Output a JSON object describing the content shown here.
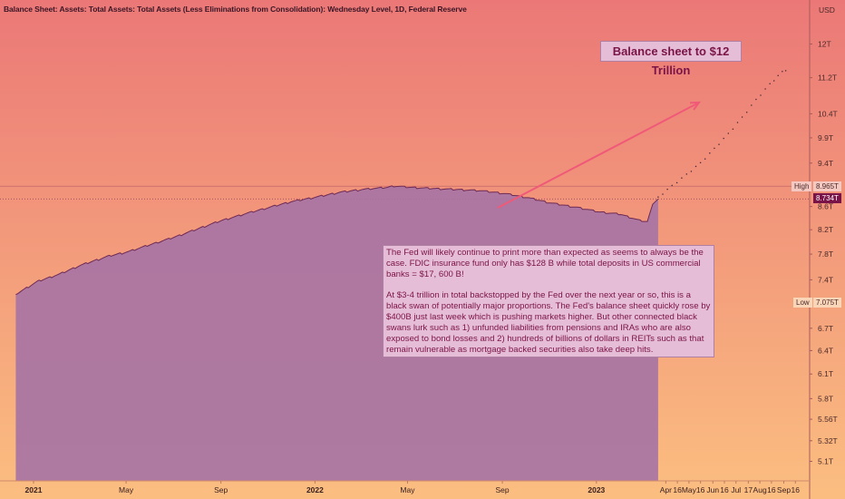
{
  "header": {
    "title": "Balance Sheet: Assets: Total Assets: Total Assets (Less Eliminations from Consolidation): Wednesday Level, 1D, Federal Reserve"
  },
  "colors": {
    "bg_top": "#eb7877",
    "bg_bottom": "#fbbe80",
    "area_fill": "#a774a4",
    "area_line": "#6e2a54",
    "arrow": "#f05a78",
    "note_bg": "#e6bdd6",
    "note_text": "#7a1448"
  },
  "annotations": {
    "title_note": "Balance sheet to $12 Trillion",
    "note_p1": "The Fed will likely continue to print more than expected as seems to always be the case. FDIC insurance fund only has $128 B while total deposits in US commercial banks = $17, 600 B!",
    "note_p2": "At $3-4 trillion in total backstopped by the Fed over the next year or so, this is a black swan of potentially major proportions. The Fed's balance sheet quickly rose by $400B just last week which is pushing markets higher. But other connected black swans lurk such as 1) unfunded liabilities from pensions and IRAs who are also exposed to bond losses and 2) hundreds of billions of dollars in REITs such as  that remain vulnerable as mortgage backed securities also take deep hits."
  },
  "price_tags": {
    "high_label": "High",
    "high_value": "8.965T",
    "current_value": "8.734T",
    "low_label": "Low",
    "low_value": "7.075T"
  },
  "chart_data": {
    "type": "area",
    "ylabel": "USD",
    "y_scale": "log",
    "y_ticks": [
      {
        "value": 12.0,
        "label": "12T"
      },
      {
        "value": 11.2,
        "label": "11.2T"
      },
      {
        "value": 10.4,
        "label": "10.4T"
      },
      {
        "value": 9.9,
        "label": "9.9T"
      },
      {
        "value": 9.4,
        "label": "9.4T"
      },
      {
        "value": 8.6,
        "label": "8.6T"
      },
      {
        "value": 8.2,
        "label": "8.2T"
      },
      {
        "value": 7.8,
        "label": "7.8T"
      },
      {
        "value": 7.4,
        "label": "7.4T"
      },
      {
        "value": 6.7,
        "label": "6.7T"
      },
      {
        "value": 6.4,
        "label": "6.4T"
      },
      {
        "value": 6.1,
        "label": "6.1T"
      },
      {
        "value": 5.8,
        "label": "5.8T"
      },
      {
        "value": 5.56,
        "label": "5.56T"
      },
      {
        "value": 5.32,
        "label": "5.32T"
      },
      {
        "value": 5.1,
        "label": "5.1T"
      }
    ],
    "x_ticks": [
      {
        "date": "2021-01-01",
        "label": "2021",
        "bold": true
      },
      {
        "date": "2021-05-01",
        "label": "May",
        "bold": false
      },
      {
        "date": "2021-09-01",
        "label": "Sep",
        "bold": false
      },
      {
        "date": "2022-01-01",
        "label": "2022",
        "bold": true
      },
      {
        "date": "2022-05-01",
        "label": "May",
        "bold": false
      },
      {
        "date": "2022-09-01",
        "label": "Sep",
        "bold": false
      },
      {
        "date": "2023-01-01",
        "label": "2023",
        "bold": true
      },
      {
        "date": "2023-04-01",
        "label": "Apr",
        "bold": false
      },
      {
        "date": "2023-04-16",
        "label": "16",
        "bold": false
      },
      {
        "date": "2023-05-01",
        "label": "May",
        "bold": false
      },
      {
        "date": "2023-05-16",
        "label": "16",
        "bold": false
      },
      {
        "date": "2023-06-01",
        "label": "Jun",
        "bold": false
      },
      {
        "date": "2023-06-16",
        "label": "16",
        "bold": false
      },
      {
        "date": "2023-07-01",
        "label": "Jul",
        "bold": false
      },
      {
        "date": "2023-07-17",
        "label": "17",
        "bold": false
      },
      {
        "date": "2023-08-01",
        "label": "Aug",
        "bold": false
      },
      {
        "date": "2023-08-16",
        "label": "16",
        "bold": false
      },
      {
        "date": "2023-09-01",
        "label": "Sep",
        "bold": false
      },
      {
        "date": "2023-09-16",
        "label": "16",
        "bold": false
      }
    ],
    "series": [
      {
        "values": [
          {
            "date": "2020-12-09",
            "value": 7.18
          },
          {
            "date": "2021-01-06",
            "value": 7.37
          },
          {
            "date": "2021-02-03",
            "value": 7.48
          },
          {
            "date": "2021-03-03",
            "value": 7.62
          },
          {
            "date": "2021-04-07",
            "value": 7.76
          },
          {
            "date": "2021-05-05",
            "value": 7.84
          },
          {
            "date": "2021-06-02",
            "value": 7.95
          },
          {
            "date": "2021-07-07",
            "value": 8.09
          },
          {
            "date": "2021-08-04",
            "value": 8.22
          },
          {
            "date": "2021-09-01",
            "value": 8.35
          },
          {
            "date": "2021-10-06",
            "value": 8.48
          },
          {
            "date": "2021-11-03",
            "value": 8.58
          },
          {
            "date": "2021-12-01",
            "value": 8.68
          },
          {
            "date": "2022-01-05",
            "value": 8.77
          },
          {
            "date": "2022-02-02",
            "value": 8.85
          },
          {
            "date": "2022-03-02",
            "value": 8.9
          },
          {
            "date": "2022-04-06",
            "value": 8.94
          },
          {
            "date": "2022-04-13",
            "value": 8.965
          },
          {
            "date": "2022-05-04",
            "value": 8.94
          },
          {
            "date": "2022-06-01",
            "value": 8.92
          },
          {
            "date": "2022-07-06",
            "value": 8.9
          },
          {
            "date": "2022-08-03",
            "value": 8.88
          },
          {
            "date": "2022-09-07",
            "value": 8.82
          },
          {
            "date": "2022-10-05",
            "value": 8.75
          },
          {
            "date": "2022-11-02",
            "value": 8.66
          },
          {
            "date": "2022-12-07",
            "value": 8.58
          },
          {
            "date": "2023-01-04",
            "value": 8.5
          },
          {
            "date": "2023-02-01",
            "value": 8.46
          },
          {
            "date": "2023-03-01",
            "value": 8.34
          },
          {
            "date": "2023-03-08",
            "value": 8.34
          },
          {
            "date": "2023-03-15",
            "value": 8.64
          },
          {
            "date": "2023-03-22",
            "value": 8.734
          }
        ]
      },
      {
        "values": [
          {
            "date": "2023-03-22",
            "value": 8.76
          },
          {
            "date": "2023-04-09",
            "value": 8.97
          },
          {
            "date": "2023-04-28",
            "value": 9.18
          },
          {
            "date": "2023-05-16",
            "value": 9.4
          },
          {
            "date": "2023-06-03",
            "value": 9.68
          },
          {
            "date": "2023-06-21",
            "value": 9.98
          },
          {
            "date": "2023-07-09",
            "value": 10.32
          },
          {
            "date": "2023-07-27",
            "value": 10.7
          },
          {
            "date": "2023-08-14",
            "value": 11.05
          },
          {
            "date": "2023-08-30",
            "value": 11.33
          },
          {
            "date": "2023-09-08",
            "value": 11.42
          }
        ]
      }
    ]
  }
}
